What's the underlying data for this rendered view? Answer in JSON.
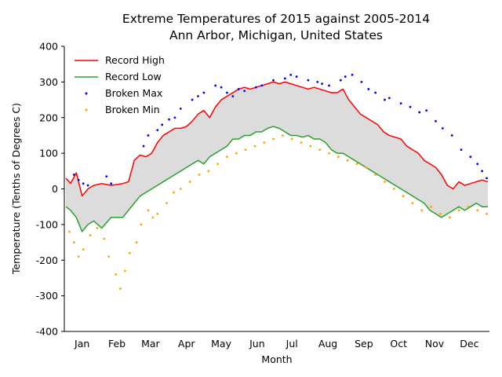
{
  "chart_data": {
    "type": "line",
    "title": "Extreme Temperatures of 2015 against 2005-2014",
    "subtitle": "Ann Arbor, Michigan, United States",
    "xlabel": "Month",
    "ylabel": "Temperature (Tenths of Degrees C)",
    "ylim": [
      -400,
      400
    ],
    "yticks": [
      -400,
      -300,
      -200,
      -100,
      0,
      100,
      200,
      300,
      400
    ],
    "xlim_day": [
      1,
      365
    ],
    "month_labels": [
      "Jan",
      "Feb",
      "Mar",
      "Apr",
      "May",
      "Jun",
      "Jul",
      "Aug",
      "Sep",
      "Oct",
      "Nov",
      "Dec"
    ],
    "month_label_day": [
      15,
      45,
      74,
      105,
      135,
      166,
      196,
      227,
      258,
      288,
      319,
      349
    ],
    "legend_position": "upper-left",
    "fill_between": {
      "color": "#dcdcdc"
    },
    "series": [
      {
        "name": "Record High",
        "kind": "line",
        "color": "#ff0000",
        "day": [
          1,
          5,
          10,
          15,
          20,
          25,
          32,
          40,
          50,
          55,
          60,
          65,
          70,
          75,
          80,
          85,
          90,
          95,
          100,
          105,
          110,
          115,
          120,
          125,
          130,
          135,
          140,
          145,
          150,
          155,
          160,
          165,
          170,
          175,
          180,
          185,
          190,
          195,
          200,
          205,
          210,
          215,
          220,
          225,
          230,
          235,
          240,
          245,
          250,
          255,
          260,
          265,
          270,
          275,
          280,
          285,
          290,
          295,
          300,
          305,
          310,
          315,
          320,
          325,
          330,
          335,
          340,
          345,
          350,
          355,
          360,
          365
        ],
        "values": [
          30,
          15,
          45,
          -20,
          0,
          10,
          15,
          10,
          15,
          20,
          80,
          95,
          90,
          100,
          130,
          150,
          160,
          170,
          170,
          175,
          190,
          210,
          220,
          200,
          230,
          250,
          260,
          270,
          280,
          285,
          280,
          285,
          290,
          295,
          300,
          295,
          300,
          295,
          290,
          285,
          280,
          285,
          280,
          275,
          270,
          270,
          280,
          250,
          230,
          210,
          200,
          190,
          180,
          160,
          150,
          145,
          140,
          120,
          110,
          100,
          80,
          70,
          60,
          40,
          10,
          0,
          20,
          10,
          15,
          20,
          25,
          20
        ]
      },
      {
        "name": "Record Low",
        "kind": "line",
        "color": "#2ca02c",
        "day": [
          1,
          5,
          10,
          15,
          20,
          25,
          32,
          40,
          50,
          55,
          60,
          65,
          70,
          75,
          80,
          85,
          90,
          95,
          100,
          105,
          110,
          115,
          120,
          125,
          130,
          135,
          140,
          145,
          150,
          155,
          160,
          165,
          170,
          175,
          180,
          185,
          190,
          195,
          200,
          205,
          210,
          215,
          220,
          225,
          230,
          235,
          240,
          245,
          250,
          255,
          260,
          265,
          270,
          275,
          280,
          285,
          290,
          295,
          300,
          305,
          310,
          315,
          320,
          325,
          330,
          335,
          340,
          345,
          350,
          355,
          360,
          365
        ],
        "values": [
          -50,
          -60,
          -80,
          -120,
          -100,
          -90,
          -110,
          -80,
          -80,
          -60,
          -40,
          -20,
          -10,
          0,
          10,
          20,
          30,
          40,
          50,
          60,
          70,
          80,
          70,
          90,
          100,
          110,
          120,
          140,
          140,
          150,
          150,
          160,
          160,
          170,
          175,
          170,
          160,
          150,
          150,
          145,
          150,
          140,
          140,
          130,
          110,
          100,
          100,
          90,
          80,
          70,
          60,
          50,
          40,
          30,
          20,
          10,
          0,
          -10,
          -20,
          -30,
          -40,
          -60,
          -70,
          -80,
          -70,
          -60,
          -50,
          -60,
          -50,
          -40,
          -50,
          -50
        ]
      },
      {
        "name": "Broken Max",
        "kind": "scatter",
        "color": "#0000ff",
        "day": [
          8,
          12,
          16,
          20,
          36,
          40,
          68,
          72,
          80,
          84,
          90,
          95,
          100,
          110,
          115,
          120,
          130,
          135,
          140,
          145,
          150,
          155,
          165,
          170,
          180,
          190,
          195,
          200,
          210,
          218,
          222,
          228,
          238,
          242,
          248,
          256,
          262,
          268,
          276,
          280,
          290,
          298,
          306,
          312,
          320,
          326,
          334,
          342,
          350,
          356,
          360,
          364
        ],
        "values": [
          40,
          25,
          15,
          10,
          35,
          15,
          120,
          150,
          165,
          180,
          195,
          200,
          225,
          250,
          260,
          270,
          290,
          285,
          270,
          260,
          280,
          275,
          285,
          290,
          305,
          310,
          320,
          315,
          305,
          300,
          295,
          290,
          305,
          315,
          320,
          300,
          280,
          270,
          250,
          255,
          240,
          230,
          215,
          220,
          190,
          170,
          150,
          110,
          90,
          70,
          50,
          30
        ]
      },
      {
        "name": "Broken Min",
        "kind": "scatter",
        "color": "#ffa500",
        "day": [
          4,
          8,
          12,
          16,
          22,
          28,
          34,
          38,
          44,
          48,
          52,
          56,
          62,
          66,
          72,
          76,
          80,
          88,
          94,
          100,
          108,
          116,
          124,
          132,
          140,
          148,
          156,
          164,
          172,
          180,
          188,
          196,
          204,
          212,
          220,
          228,
          236,
          244,
          252,
          260,
          268,
          276,
          284,
          292,
          300,
          308,
          316,
          324,
          332,
          340,
          348,
          356,
          364
        ],
        "values": [
          -120,
          -150,
          -190,
          -170,
          -130,
          -110,
          -140,
          -190,
          -240,
          -280,
          -230,
          -180,
          -150,
          -100,
          -60,
          -80,
          -70,
          -40,
          -10,
          0,
          20,
          40,
          50,
          70,
          90,
          100,
          110,
          120,
          130,
          140,
          150,
          140,
          130,
          120,
          110,
          100,
          90,
          80,
          70,
          60,
          40,
          20,
          0,
          -20,
          -40,
          -60,
          -50,
          -70,
          -80,
          -60,
          -50,
          -60,
          -70
        ]
      }
    ]
  }
}
